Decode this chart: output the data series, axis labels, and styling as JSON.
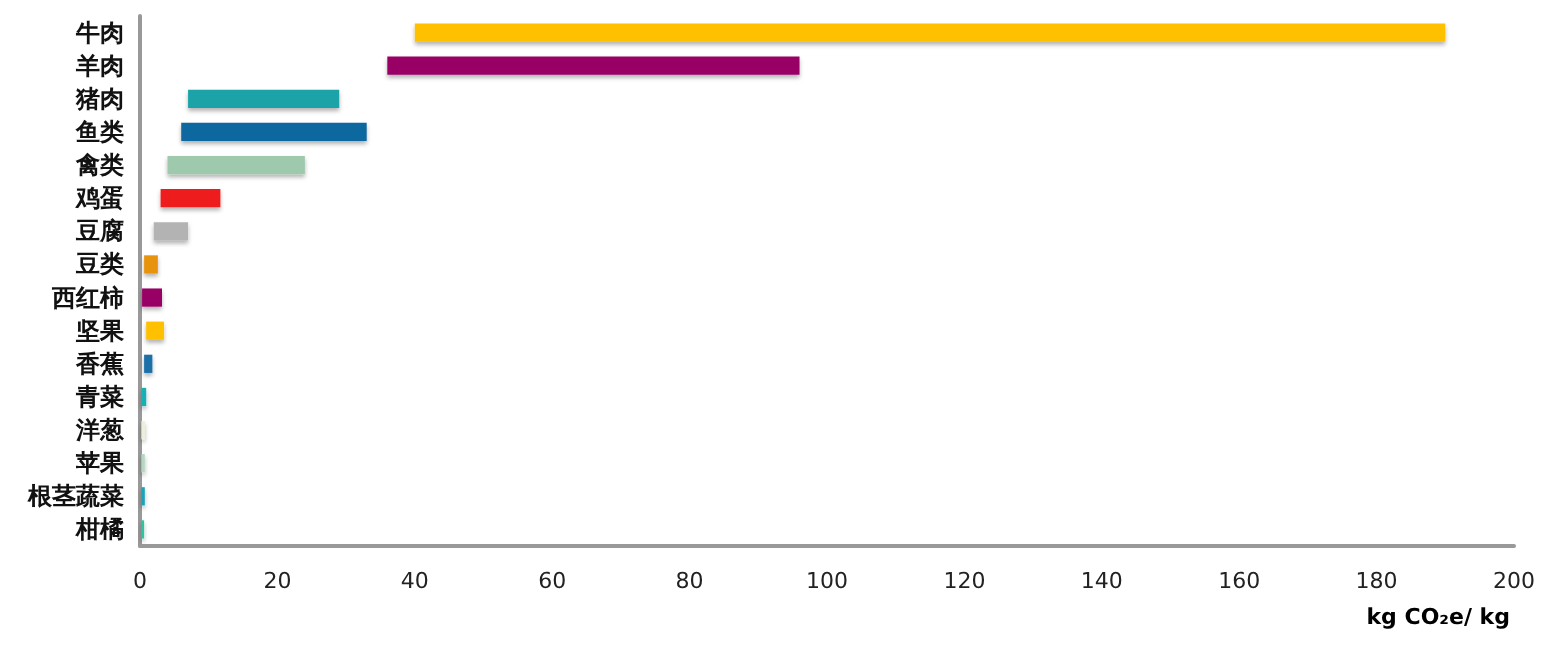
{
  "chart_data": {
    "type": "bar",
    "orientation": "horizontal",
    "xlabel": "kg CO₂e/ kg",
    "categories": [
      "牛肉",
      "羊肉",
      "猪肉",
      "鱼类",
      "禽类",
      "鸡蛋",
      "豆腐",
      "豆类",
      "西红柿",
      "坚果",
      "香蕉",
      "青菜",
      "洋葱",
      "苹果",
      "根茎蔬菜",
      "柑橘"
    ],
    "base": [
      40,
      36,
      7,
      6,
      4,
      3,
      2,
      0.6,
      0.3,
      0.9,
      0.6,
      0.2,
      0.2,
      0.2,
      0.2,
      0.2
    ],
    "values": [
      150,
      60,
      22,
      27,
      20,
      8.7,
      5,
      2,
      2.9,
      2.6,
      1.2,
      0.7,
      0.5,
      0.5,
      0.5,
      0.4
    ],
    "colors": [
      "#ffc000",
      "#990066",
      "#1aa3a8",
      "#0e67a0",
      "#9ec9ad",
      "#ee1c1c",
      "#b3b3b3",
      "#e8930b",
      "#990066",
      "#ffc000",
      "#1a6fa8",
      "#17b0b5",
      "#eeeedd",
      "#b5d8c3",
      "#1aa3b8",
      "#2ec4a0"
    ],
    "xlim": [
      0,
      200
    ],
    "xticks": [
      0,
      20,
      40,
      60,
      80,
      100,
      120,
      140,
      160,
      180,
      200
    ],
    "grid": false
  }
}
